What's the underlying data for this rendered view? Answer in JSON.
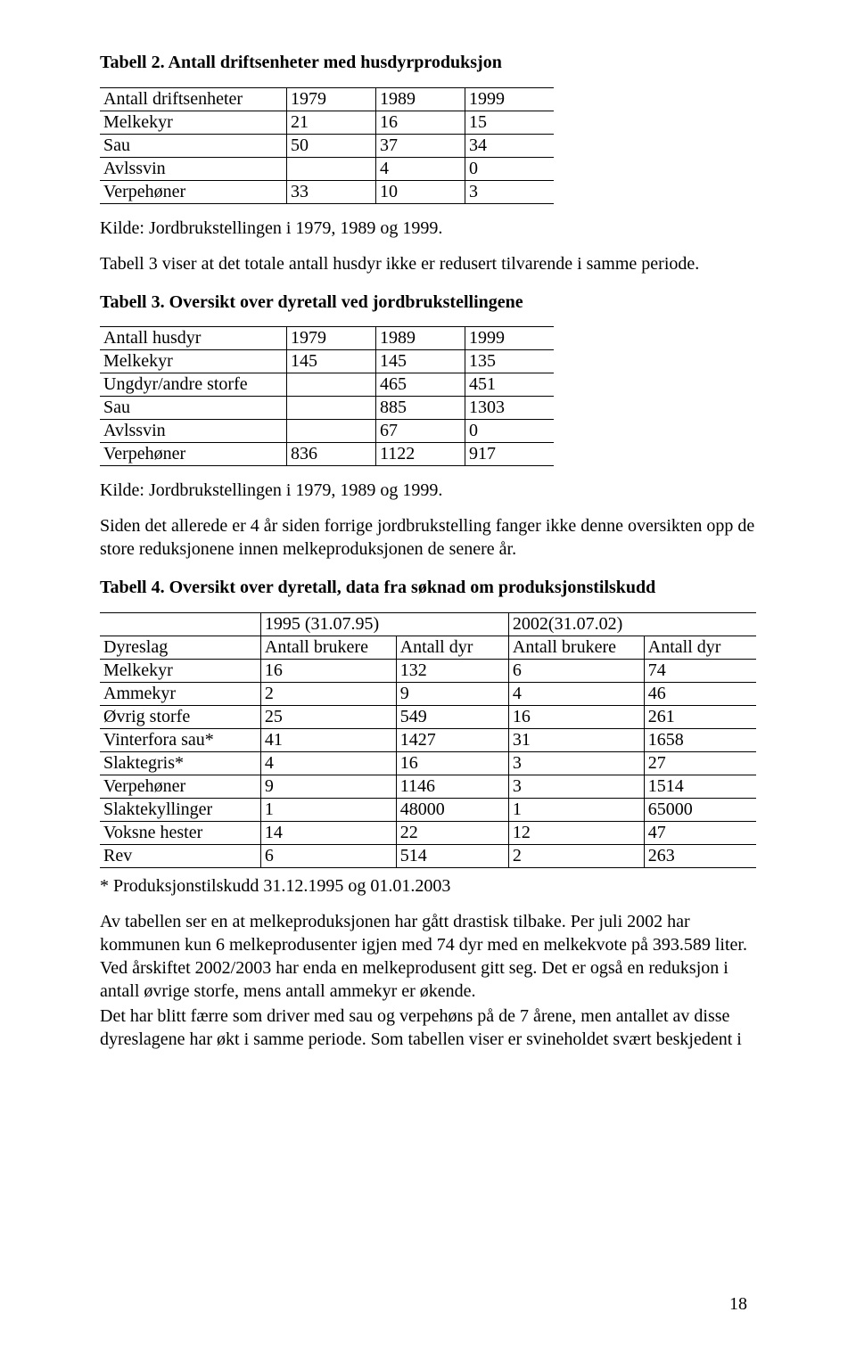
{
  "table2": {
    "caption": "Tabell 2. Antall driftsenheter med husdyrproduksjon",
    "headers": [
      "Antall driftsenheter",
      "1979",
      "1989",
      "1999"
    ],
    "rows": [
      [
        "Melkekyr",
        "21",
        "16",
        "15"
      ],
      [
        "Sau",
        "50",
        "37",
        "34"
      ],
      [
        "Avlssvin",
        "",
        "4",
        "0"
      ],
      [
        "Verpehøner",
        "33",
        "10",
        "3"
      ]
    ],
    "source": "Kilde: Jordbrukstellingen i 1979, 1989 og 1999."
  },
  "para_after_t2": "Tabell 3 viser at det totale antall husdyr ikke er redusert tilvarende i samme periode.",
  "table3": {
    "caption": "Tabell 3. Oversikt over dyretall ved jordbrukstellingene",
    "headers": [
      "Antall husdyr",
      "1979",
      "1989",
      "1999"
    ],
    "rows": [
      [
        "Melkekyr",
        "145",
        "145",
        "135"
      ],
      [
        "Ungdyr/andre storfe",
        "",
        "465",
        "451"
      ],
      [
        "Sau",
        "",
        "885",
        "1303"
      ],
      [
        "Avlssvin",
        "",
        "67",
        "0"
      ],
      [
        "Verpehøner",
        "836",
        "1122",
        "917"
      ]
    ],
    "source": "Kilde: Jordbrukstellingen i 1979, 1989 og 1999."
  },
  "para_after_t3": "Siden det allerede er 4 år siden forrige jordbrukstelling fanger ikke denne oversikten opp de store reduksjonene innen melkeproduksjonen de senere år.",
  "table4": {
    "caption": "Tabell 4. Oversikt over dyretall, data fra søknad om produksjonstilskudd",
    "group_headers": [
      "",
      "1995 (31.07.95)",
      "2002(31.07.02)"
    ],
    "headers": [
      "Dyreslag",
      "Antall brukere",
      "Antall dyr",
      "Antall brukere",
      "Antall dyr"
    ],
    "rows": [
      [
        "Melkekyr",
        "16",
        "132",
        "6",
        "74"
      ],
      [
        "Ammekyr",
        "2",
        "9",
        "4",
        "46"
      ],
      [
        "Øvrig storfe",
        "25",
        "549",
        "16",
        "261"
      ],
      [
        "Vinterfora sau*",
        "41",
        "1427",
        "31",
        "1658"
      ],
      [
        "Slaktegris*",
        "4",
        "16",
        "3",
        "27"
      ],
      [
        "Verpehøner",
        "9",
        "1146",
        "3",
        "1514"
      ],
      [
        "Slaktekyllinger",
        "1",
        "48000",
        "1",
        "65000"
      ],
      [
        "Voksne hester",
        "14",
        "22",
        "12",
        "47"
      ],
      [
        "Rev",
        "6",
        "514",
        "2",
        "263"
      ]
    ],
    "footnote": "* Produksjonstilskudd 31.12.1995 og 01.01.2003"
  },
  "closing_para": "Av tabellen ser en at melkeproduksjonen har gått drastisk tilbake. Per juli 2002 har kommunen kun 6 melkeprodusenter igjen med 74 dyr med en melkekvote på 393.589 liter. Ved årskiftet 2002/2003 har enda en melkeprodusent gitt seg. Det er også en reduksjon i antall øvrige storfe, mens antall ammekyr er økende.",
  "closing_para2": "Det har blitt færre som driver med sau og verpehøns på de 7 årene, men antallet av disse dyreslagene har økt i samme periode. Som tabellen viser er svineholdet svært beskjedent i",
  "page_number": "18"
}
